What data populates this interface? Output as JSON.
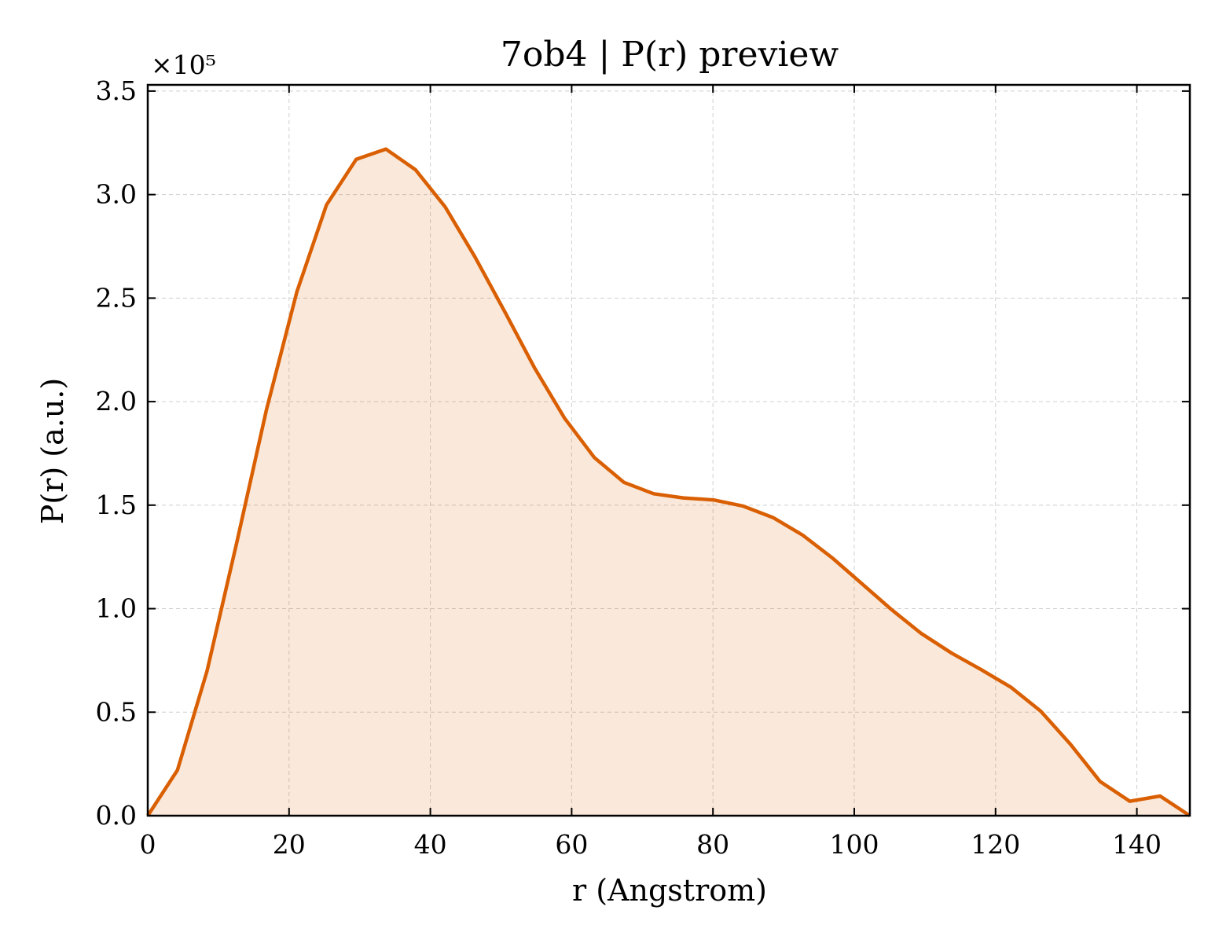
{
  "chart_data": {
    "type": "area",
    "title": "7ob4 | P(r) preview",
    "xlabel": "r (Angstrom)",
    "ylabel": "P(r) (a.u.)",
    "y_scale_label": "×10⁵",
    "y_scale_factor": 100000,
    "xlim": [
      0,
      147.5
    ],
    "ylim": [
      0,
      3.53
    ],
    "x_ticks": [
      0,
      20,
      40,
      60,
      80,
      100,
      120,
      140
    ],
    "x_tick_labels": [
      "0",
      "20",
      "40",
      "60",
      "80",
      "100",
      "120",
      "140"
    ],
    "y_ticks": [
      0,
      0.5,
      1.0,
      1.5,
      2.0,
      2.5,
      3.0,
      3.5
    ],
    "y_tick_labels": [
      "0.0",
      "0.5",
      "1.0",
      "1.5",
      "2.0",
      "2.5",
      "3.0",
      "3.5"
    ],
    "grid": true,
    "line_color": "#d95f02",
    "fill_color": "#d95f02",
    "fill_opacity": 0.14,
    "series": [
      {
        "x": [
          0,
          4.2,
          8.4,
          12.6,
          16.8,
          21.1,
          25.3,
          29.5,
          33.7,
          37.9,
          42.1,
          46.3,
          50.6,
          54.8,
          59.0,
          63.2,
          67.4,
          71.6,
          75.8,
          80.1,
          84.3,
          88.5,
          92.7,
          96.9,
          101.1,
          105.3,
          109.5,
          113.8,
          118.0,
          122.2,
          126.4,
          130.6,
          134.8,
          139.0,
          143.3,
          147.5
        ],
        "y": [
          0.0,
          0.22,
          0.7,
          1.32,
          1.96,
          2.53,
          2.95,
          3.17,
          3.22,
          3.12,
          2.94,
          2.7,
          2.43,
          2.16,
          1.92,
          1.73,
          1.61,
          1.555,
          1.535,
          1.525,
          1.495,
          1.44,
          1.355,
          1.245,
          1.12,
          0.995,
          0.88,
          0.785,
          0.705,
          0.62,
          0.505,
          0.345,
          0.165,
          0.07,
          0.095,
          0.0
        ]
      }
    ]
  }
}
